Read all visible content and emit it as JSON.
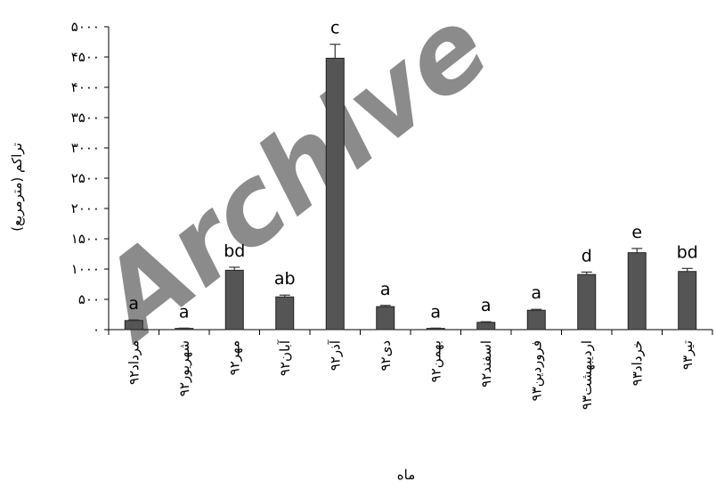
{
  "watermark": "Archive",
  "chart_data": {
    "type": "bar",
    "xlabel": "ماه",
    "ylabel": "تراکم (مترمربع)",
    "ylim": [
      0,
      5000
    ],
    "yticks": [
      0,
      500,
      1000,
      1500,
      2000,
      2500,
      3000,
      3500,
      4000,
      4500,
      5000
    ],
    "ytick_labels": [
      "۰",
      "۵۰۰",
      "۱۰۰۰",
      "۱۵۰۰",
      "۲۰۰۰",
      "۲۵۰۰",
      "۳۰۰۰",
      "۳۵۰۰",
      "۴۰۰۰",
      "۴۵۰۰",
      "۵۰۰۰"
    ],
    "categories": [
      "مرداد۹۲",
      "شهریور۹۲",
      "مهر۹۲",
      "آبان۹۲",
      "آذر۹۲",
      "دی۹۲",
      "بهمن۹۲",
      "اسفند۹۲",
      "فروردین۹۳",
      "اردیبهشت۹۳",
      "خرداد۹۳",
      "تیر۹۳"
    ],
    "values": [
      150,
      20,
      980,
      540,
      4480,
      380,
      20,
      120,
      320,
      910,
      1270,
      960
    ],
    "errors": [
      10,
      5,
      50,
      30,
      230,
      20,
      5,
      10,
      15,
      40,
      70,
      50
    ],
    "letters": [
      "a",
      "a",
      "bd",
      "ab",
      "c",
      "a",
      "a",
      "a",
      "a",
      "d",
      "e",
      "bd"
    ],
    "bar_color": "#555555",
    "grid": false,
    "legend": "none"
  }
}
